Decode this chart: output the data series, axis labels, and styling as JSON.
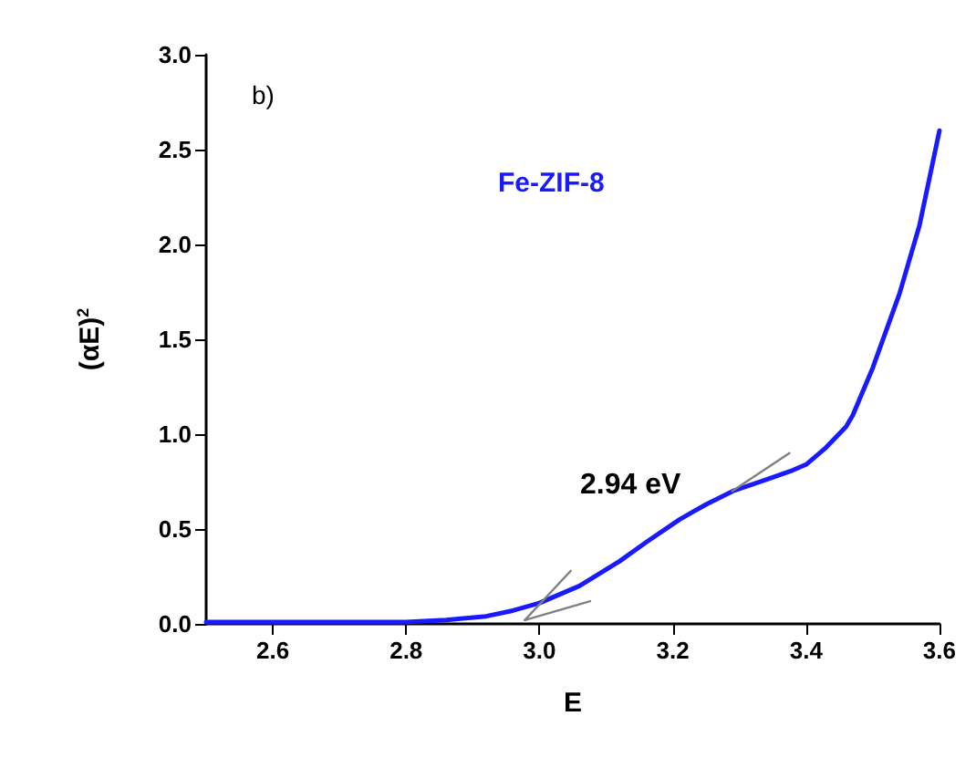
{
  "chart_data": {
    "type": "line",
    "xlabel": "E",
    "ylabel": "(αE)$^{2}$",
    "xlim": [
      2.5,
      3.6
    ],
    "xticks": [
      2.6,
      2.8,
      {
        "value": 3,
        "label": "3.0"
      },
      3.2,
      3.4,
      3.6
    ],
    "ylim": [
      0,
      3
    ],
    "yticks": [
      {
        "value": 0,
        "label": "0.0"
      },
      0.5,
      {
        "value": 1,
        "label": "1.0"
      },
      1.5,
      {
        "value": 2,
        "label": "2.0"
      },
      2.5,
      {
        "value": 3,
        "label": "3.0"
      }
    ],
    "annotations": [
      "b)",
      "2.94 eV"
    ],
    "legend": "top",
    "grid": false,
    "marker": "none",
    "line_style": "solid",
    "series": [
      {
        "name": "Fe-ZIF-8",
        "color": "#1a1aff",
        "x": [
          2.5,
          2.6,
          2.7,
          2.8,
          2.86,
          2.92,
          2.96,
          3.0,
          3.06,
          3.12,
          3.16,
          3.21,
          3.25,
          3.29,
          3.34,
          3.38,
          3.4,
          3.43,
          3.46,
          3.47,
          3.5,
          3.54,
          3.57,
          3.6
        ],
        "values": [
          0.01,
          0.01,
          0.01,
          0.01,
          0.02,
          0.04,
          0.07,
          0.11,
          0.2,
          0.33,
          0.43,
          0.55,
          0.63,
          0.7,
          0.76,
          0.81,
          0.84,
          0.93,
          1.04,
          1.1,
          1.35,
          1.74,
          2.1,
          2.6
        ]
      },
      {
        "color": "#808080",
        "x": [
          2.978,
          3.047
        ],
        "values": [
          0.02,
          0.28
        ]
      },
      {
        "color": "#808080",
        "x": [
          2.978,
          3.076
        ],
        "values": [
          0.02,
          0.12
        ]
      },
      {
        "color": "#808080",
        "x": [
          3.289,
          3.375
        ],
        "values": [
          0.7,
          0.9
        ]
      }
    ]
  }
}
